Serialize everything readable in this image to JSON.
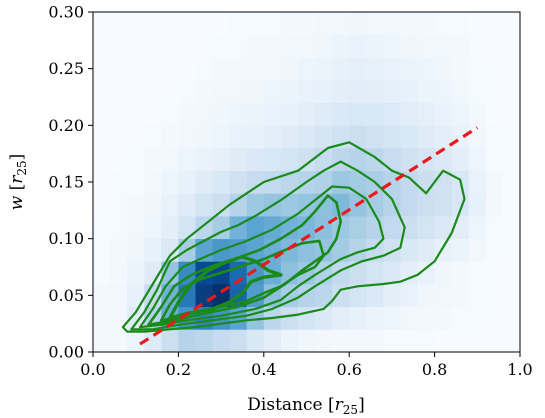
{
  "chart_data": {
    "type": "heatmap",
    "title": "",
    "xlabel": "Distance",
    "xlabel_unit": "r",
    "xlabel_unit_sub": "25",
    "ylabel": "w",
    "ylabel_unit": "r",
    "ylabel_unit_sub": "25",
    "xlim": [
      0.0,
      1.0
    ],
    "ylim": [
      0.0,
      0.3
    ],
    "x_ticks": [
      0.0,
      0.2,
      0.4,
      0.6,
      0.8,
      1.0
    ],
    "x_tick_labels": [
      "0.0",
      "0.2",
      "0.4",
      "0.6",
      "0.8",
      "1.0"
    ],
    "y_ticks": [
      0.0,
      0.05,
      0.1,
      0.15,
      0.2,
      0.25,
      0.3
    ],
    "y_tick_labels": [
      "0.00",
      "0.05",
      "0.10",
      "0.15",
      "0.20",
      "0.25",
      "0.30"
    ],
    "grid": false,
    "legend": "none",
    "colormap": [
      "#f7fbff",
      "#deebf7",
      "#c6dbef",
      "#9ecae1",
      "#6baed6",
      "#4292c6",
      "#2171b5",
      "#08519c",
      "#08306b"
    ],
    "heatmap": {
      "x_edges": [
        0.0,
        0.04,
        0.08,
        0.12,
        0.16,
        0.2,
        0.24,
        0.28,
        0.32,
        0.36,
        0.4,
        0.44,
        0.48,
        0.52,
        0.56,
        0.6,
        0.64,
        0.68,
        0.72,
        0.76,
        0.8,
        0.84,
        0.88,
        0.92,
        0.96,
        1.0
      ],
      "y_edges": [
        0.0,
        0.02,
        0.04,
        0.06,
        0.08,
        0.1,
        0.12,
        0.14,
        0.16,
        0.18,
        0.2,
        0.22,
        0.24,
        0.26,
        0.28,
        0.3
      ],
      "values": [
        [
          0.02,
          0.02,
          0.05,
          0.12,
          0.22,
          0.3,
          0.28,
          0.25,
          0.22,
          0.15,
          0.1,
          0.06,
          0.04,
          0.03,
          0.02,
          0.02,
          0.02,
          0.01,
          0.01,
          0.01,
          0.0,
          0.0,
          0.0,
          0.0,
          0.0
        ],
        [
          0.02,
          0.03,
          0.12,
          0.3,
          0.5,
          0.62,
          0.68,
          0.62,
          0.55,
          0.4,
          0.28,
          0.22,
          0.18,
          0.14,
          0.1,
          0.08,
          0.06,
          0.05,
          0.03,
          0.02,
          0.02,
          0.01,
          0.01,
          0.0,
          0.0
        ],
        [
          0.02,
          0.03,
          0.08,
          0.25,
          0.48,
          0.72,
          0.95,
          1.0,
          0.8,
          0.58,
          0.42,
          0.35,
          0.3,
          0.28,
          0.22,
          0.18,
          0.14,
          0.1,
          0.07,
          0.04,
          0.03,
          0.02,
          0.01,
          0.0,
          0.0
        ],
        [
          0.01,
          0.02,
          0.06,
          0.12,
          0.4,
          0.65,
          0.9,
          0.92,
          0.78,
          0.6,
          0.5,
          0.42,
          0.38,
          0.32,
          0.26,
          0.22,
          0.18,
          0.14,
          0.1,
          0.07,
          0.04,
          0.02,
          0.01,
          0.0,
          0.0
        ],
        [
          0.01,
          0.02,
          0.04,
          0.08,
          0.14,
          0.35,
          0.55,
          0.6,
          0.58,
          0.55,
          0.5,
          0.45,
          0.42,
          0.4,
          0.36,
          0.3,
          0.25,
          0.2,
          0.15,
          0.12,
          0.08,
          0.06,
          0.03,
          0.01,
          0.0
        ],
        [
          0.01,
          0.01,
          0.03,
          0.05,
          0.1,
          0.18,
          0.28,
          0.35,
          0.48,
          0.55,
          0.52,
          0.48,
          0.46,
          0.42,
          0.38,
          0.34,
          0.3,
          0.26,
          0.22,
          0.18,
          0.14,
          0.1,
          0.05,
          0.01,
          0.0
        ],
        [
          0.0,
          0.01,
          0.02,
          0.04,
          0.07,
          0.12,
          0.18,
          0.22,
          0.3,
          0.38,
          0.4,
          0.38,
          0.4,
          0.42,
          0.45,
          0.4,
          0.35,
          0.3,
          0.26,
          0.22,
          0.2,
          0.16,
          0.08,
          0.02,
          0.0
        ],
        [
          0.0,
          0.01,
          0.01,
          0.03,
          0.05,
          0.08,
          0.12,
          0.15,
          0.2,
          0.24,
          0.26,
          0.28,
          0.3,
          0.32,
          0.38,
          0.36,
          0.34,
          0.3,
          0.26,
          0.22,
          0.2,
          0.16,
          0.07,
          0.02,
          0.0
        ],
        [
          0.0,
          0.0,
          0.01,
          0.02,
          0.03,
          0.05,
          0.07,
          0.09,
          0.12,
          0.14,
          0.16,
          0.18,
          0.2,
          0.24,
          0.28,
          0.3,
          0.28,
          0.24,
          0.2,
          0.17,
          0.14,
          0.1,
          0.05,
          0.01,
          0.0
        ],
        [
          0.0,
          0.0,
          0.0,
          0.01,
          0.02,
          0.03,
          0.04,
          0.05,
          0.07,
          0.08,
          0.1,
          0.12,
          0.14,
          0.17,
          0.2,
          0.22,
          0.2,
          0.18,
          0.15,
          0.12,
          0.1,
          0.07,
          0.03,
          0.01,
          0.0
        ],
        [
          0.0,
          0.0,
          0.0,
          0.0,
          0.01,
          0.02,
          0.03,
          0.04,
          0.05,
          0.06,
          0.07,
          0.08,
          0.1,
          0.12,
          0.14,
          0.16,
          0.15,
          0.13,
          0.11,
          0.09,
          0.07,
          0.05,
          0.02,
          0.0,
          0.0
        ],
        [
          0.0,
          0.0,
          0.0,
          0.0,
          0.0,
          0.01,
          0.02,
          0.03,
          0.03,
          0.04,
          0.05,
          0.06,
          0.07,
          0.08,
          0.1,
          0.11,
          0.1,
          0.09,
          0.08,
          0.06,
          0.05,
          0.03,
          0.01,
          0.0,
          0.0
        ],
        [
          0.0,
          0.0,
          0.0,
          0.0,
          0.0,
          0.0,
          0.01,
          0.02,
          0.02,
          0.03,
          0.03,
          0.04,
          0.05,
          0.06,
          0.08,
          0.09,
          0.08,
          0.07,
          0.06,
          0.05,
          0.04,
          0.02,
          0.01,
          0.0,
          0.0
        ],
        [
          0.0,
          0.0,
          0.0,
          0.0,
          0.0,
          0.0,
          0.0,
          0.01,
          0.01,
          0.02,
          0.02,
          0.03,
          0.03,
          0.04,
          0.06,
          0.07,
          0.06,
          0.05,
          0.04,
          0.03,
          0.03,
          0.02,
          0.0,
          0.0,
          0.0
        ],
        [
          0.0,
          0.0,
          0.0,
          0.0,
          0.0,
          0.0,
          0.0,
          0.0,
          0.01,
          0.01,
          0.01,
          0.02,
          0.02,
          0.03,
          0.03,
          0.04,
          0.03,
          0.03,
          0.02,
          0.02,
          0.01,
          0.01,
          0.0,
          0.0,
          0.0
        ]
      ]
    },
    "contours": [
      {
        "level": 1,
        "stroke": "#1a8a1a",
        "width": 2.2,
        "points": [
          [
            0.07,
            0.022
          ],
          [
            0.1,
            0.035
          ],
          [
            0.14,
            0.06
          ],
          [
            0.18,
            0.085
          ],
          [
            0.22,
            0.1
          ],
          [
            0.27,
            0.115
          ],
          [
            0.32,
            0.13
          ],
          [
            0.4,
            0.15
          ],
          [
            0.48,
            0.16
          ],
          [
            0.55,
            0.18
          ],
          [
            0.6,
            0.185
          ],
          [
            0.66,
            0.172
          ],
          [
            0.7,
            0.16
          ],
          [
            0.74,
            0.154
          ],
          [
            0.78,
            0.14
          ],
          [
            0.8,
            0.15
          ],
          [
            0.82,
            0.16
          ],
          [
            0.86,
            0.152
          ],
          [
            0.87,
            0.135
          ],
          [
            0.84,
            0.105
          ],
          [
            0.8,
            0.08
          ],
          [
            0.76,
            0.068
          ],
          [
            0.72,
            0.062
          ],
          [
            0.68,
            0.06
          ],
          [
            0.62,
            0.058
          ],
          [
            0.58,
            0.055
          ],
          [
            0.56,
            0.045
          ],
          [
            0.54,
            0.038
          ],
          [
            0.48,
            0.033
          ],
          [
            0.42,
            0.03
          ],
          [
            0.36,
            0.028
          ],
          [
            0.3,
            0.025
          ],
          [
            0.24,
            0.022
          ],
          [
            0.18,
            0.02
          ],
          [
            0.12,
            0.018
          ],
          [
            0.08,
            0.018
          ],
          [
            0.07,
            0.022
          ]
        ]
      },
      {
        "level": 2,
        "stroke": "#1a8a1a",
        "width": 2.2,
        "points": [
          [
            0.09,
            0.02
          ],
          [
            0.12,
            0.035
          ],
          [
            0.15,
            0.055
          ],
          [
            0.18,
            0.08
          ],
          [
            0.22,
            0.09
          ],
          [
            0.26,
            0.098
          ],
          [
            0.3,
            0.106
          ],
          [
            0.34,
            0.112
          ],
          [
            0.38,
            0.12
          ],
          [
            0.44,
            0.134
          ],
          [
            0.5,
            0.15
          ],
          [
            0.54,
            0.16
          ],
          [
            0.58,
            0.168
          ],
          [
            0.62,
            0.16
          ],
          [
            0.66,
            0.15
          ],
          [
            0.7,
            0.135
          ],
          [
            0.73,
            0.11
          ],
          [
            0.72,
            0.092
          ],
          [
            0.68,
            0.085
          ],
          [
            0.63,
            0.08
          ],
          [
            0.58,
            0.072
          ],
          [
            0.55,
            0.065
          ],
          [
            0.52,
            0.058
          ],
          [
            0.48,
            0.048
          ],
          [
            0.42,
            0.038
          ],
          [
            0.36,
            0.032
          ],
          [
            0.28,
            0.028
          ],
          [
            0.2,
            0.024
          ],
          [
            0.14,
            0.02
          ],
          [
            0.09,
            0.02
          ]
        ]
      },
      {
        "level": 3,
        "stroke": "#1a8a1a",
        "width": 2.2,
        "points": [
          [
            0.11,
            0.022
          ],
          [
            0.14,
            0.038
          ],
          [
            0.17,
            0.058
          ],
          [
            0.21,
            0.075
          ],
          [
            0.25,
            0.082
          ],
          [
            0.3,
            0.09
          ],
          [
            0.36,
            0.098
          ],
          [
            0.42,
            0.108
          ],
          [
            0.48,
            0.122
          ],
          [
            0.52,
            0.134
          ],
          [
            0.56,
            0.146
          ],
          [
            0.6,
            0.145
          ],
          [
            0.64,
            0.135
          ],
          [
            0.67,
            0.115
          ],
          [
            0.68,
            0.1
          ],
          [
            0.66,
            0.092
          ],
          [
            0.62,
            0.088
          ],
          [
            0.58,
            0.082
          ],
          [
            0.55,
            0.075
          ],
          [
            0.52,
            0.068
          ],
          [
            0.48,
            0.058
          ],
          [
            0.44,
            0.046
          ],
          [
            0.38,
            0.038
          ],
          [
            0.3,
            0.032
          ],
          [
            0.22,
            0.028
          ],
          [
            0.16,
            0.024
          ],
          [
            0.11,
            0.022
          ]
        ]
      },
      {
        "level": 4,
        "stroke": "#1a8a1a",
        "width": 2.6,
        "points": [
          [
            0.13,
            0.024
          ],
          [
            0.16,
            0.04
          ],
          [
            0.19,
            0.058
          ],
          [
            0.23,
            0.068
          ],
          [
            0.28,
            0.076
          ],
          [
            0.33,
            0.082
          ],
          [
            0.39,
            0.09
          ],
          [
            0.44,
            0.1
          ],
          [
            0.49,
            0.112
          ],
          [
            0.52,
            0.124
          ],
          [
            0.55,
            0.138
          ],
          [
            0.57,
            0.132
          ],
          [
            0.58,
            0.115
          ],
          [
            0.57,
            0.1
          ],
          [
            0.55,
            0.088
          ],
          [
            0.52,
            0.08
          ],
          [
            0.49,
            0.072
          ],
          [
            0.45,
            0.06
          ],
          [
            0.4,
            0.048
          ],
          [
            0.34,
            0.04
          ],
          [
            0.26,
            0.034
          ],
          [
            0.19,
            0.028
          ],
          [
            0.13,
            0.024
          ]
        ]
      },
      {
        "level": 5,
        "stroke": "#1a8a1a",
        "width": 2.6,
        "points": [
          [
            0.16,
            0.028
          ],
          [
            0.18,
            0.042
          ],
          [
            0.21,
            0.056
          ],
          [
            0.25,
            0.064
          ],
          [
            0.3,
            0.07
          ],
          [
            0.35,
            0.076
          ],
          [
            0.4,
            0.082
          ],
          [
            0.45,
            0.09
          ],
          [
            0.49,
            0.096
          ],
          [
            0.53,
            0.098
          ],
          [
            0.54,
            0.085
          ],
          [
            0.52,
            0.075
          ],
          [
            0.48,
            0.068
          ],
          [
            0.44,
            0.058
          ],
          [
            0.4,
            0.052
          ],
          [
            0.36,
            0.045
          ],
          [
            0.3,
            0.04
          ],
          [
            0.24,
            0.035
          ],
          [
            0.19,
            0.03
          ],
          [
            0.16,
            0.028
          ]
        ]
      },
      {
        "level": 6,
        "stroke": "#1a8a1a",
        "width": 3.4,
        "points": [
          [
            0.18,
            0.03
          ],
          [
            0.2,
            0.044
          ],
          [
            0.23,
            0.06
          ],
          [
            0.27,
            0.072
          ],
          [
            0.31,
            0.079
          ],
          [
            0.35,
            0.084
          ],
          [
            0.38,
            0.08
          ],
          [
            0.41,
            0.072
          ],
          [
            0.44,
            0.068
          ],
          [
            0.4,
            0.066
          ],
          [
            0.37,
            0.062
          ],
          [
            0.35,
            0.052
          ],
          [
            0.32,
            0.044
          ],
          [
            0.28,
            0.038
          ],
          [
            0.22,
            0.034
          ],
          [
            0.18,
            0.03
          ]
        ]
      }
    ],
    "fit_line": {
      "stroke": "#e81a1a",
      "width": 3.2,
      "dash": "10,6",
      "x": [
        0.11,
        0.9
      ],
      "y": [
        0.007,
        0.198
      ]
    }
  }
}
